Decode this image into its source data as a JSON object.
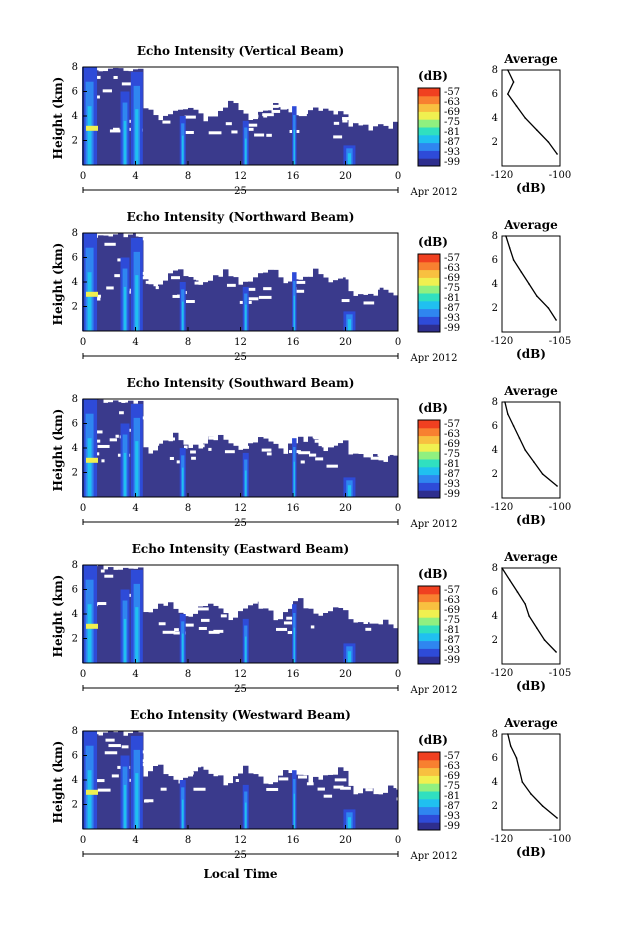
{
  "figure": {
    "date_label": "Apr 2012",
    "xlabel": "Local Time",
    "x_ticks": [
      "0",
      "4",
      "8",
      "12",
      "16",
      "20",
      "0"
    ],
    "day_label": "25",
    "ylabel": "Height (km)",
    "y_ticks": [
      "2",
      "4",
      "6",
      "8"
    ],
    "colorbar_unit": "(dB)",
    "colorbar_ticks": [
      "-57",
      "-63",
      "-69",
      "-75",
      "-81",
      "-87",
      "-93",
      "-99"
    ],
    "colors": {
      "background": "#3a3a8c",
      "colormap": [
        "#2e2e8e",
        "#2e4bd8",
        "#2f86f0",
        "#20c0f0",
        "#30e0c0",
        "#90f080",
        "#f0f050",
        "#f8c040",
        "#f88030",
        "#f04020"
      ]
    }
  },
  "chart_data": [
    {
      "type": "heatmap",
      "title": "Echo Intensity (Vertical Beam)",
      "ylabel": "Height (km)",
      "ylim": [
        0,
        8
      ],
      "xlim_hours": [
        0,
        24
      ],
      "colorbar_range_db": [
        -99,
        -57
      ],
      "profile": {
        "title": "Average",
        "xlabel": "(dB)",
        "x_ticks": [
          "-120",
          "-100"
        ],
        "xlim": [
          -120,
          -100
        ],
        "heights": [
          1,
          2,
          3,
          4,
          5,
          6,
          7,
          8
        ],
        "values": [
          -101,
          -104,
          -108,
          -112,
          -115,
          -118,
          -116,
          -118
        ]
      }
    },
    {
      "type": "heatmap",
      "title": "Echo Intensity (Northward Beam)",
      "ylabel": "Height (km)",
      "ylim": [
        0,
        8
      ],
      "xlim_hours": [
        0,
        24
      ],
      "colorbar_range_db": [
        -99,
        -57
      ],
      "profile": {
        "title": "Average",
        "xlabel": "(dB)",
        "x_ticks": [
          "-120",
          "-105"
        ],
        "xlim": [
          -120,
          -105
        ],
        "heights": [
          1,
          2,
          3,
          4,
          5,
          6,
          7,
          8
        ],
        "values": [
          -106,
          -108,
          -111,
          -113,
          -115,
          -117,
          -118,
          -119
        ]
      }
    },
    {
      "type": "heatmap",
      "title": "Echo Intensity (Southward Beam)",
      "ylabel": "Height (km)",
      "ylim": [
        0,
        8
      ],
      "xlim_hours": [
        0,
        24
      ],
      "colorbar_range_db": [
        -99,
        -57
      ],
      "profile": {
        "title": "Average",
        "xlabel": "(dB)",
        "x_ticks": [
          "-120",
          "-100"
        ],
        "xlim": [
          -120,
          -100
        ],
        "heights": [
          1,
          2,
          3,
          4,
          5,
          6,
          7,
          8
        ],
        "values": [
          -101,
          -106,
          -109,
          -112,
          -114,
          -116,
          -118,
          -119
        ]
      }
    },
    {
      "type": "heatmap",
      "title": "Echo Intensity (Eastward Beam)",
      "ylabel": "Height (km)",
      "ylim": [
        0,
        8
      ],
      "xlim_hours": [
        0,
        24
      ],
      "colorbar_range_db": [
        -99,
        -57
      ],
      "profile": {
        "title": "Average",
        "xlabel": "(dB)",
        "x_ticks": [
          "-120",
          "-105"
        ],
        "xlim": [
          -120,
          -105
        ],
        "heights": [
          1,
          2,
          3,
          4,
          5,
          6,
          7,
          8
        ],
        "values": [
          -106,
          -109,
          -111,
          -113,
          -114,
          -116,
          -118,
          -120
        ]
      }
    },
    {
      "type": "heatmap",
      "title": "Echo Intensity (Westward Beam)",
      "ylabel": "Height (km)",
      "ylim": [
        0,
        8
      ],
      "xlim_hours": [
        0,
        24
      ],
      "colorbar_range_db": [
        -99,
        -57
      ],
      "profile": {
        "title": "Average",
        "xlabel": "(dB)",
        "x_ticks": [
          "-120",
          "-100"
        ],
        "xlim": [
          -120,
          -100
        ],
        "heights": [
          1,
          2,
          3,
          4,
          5,
          6,
          7,
          8
        ],
        "values": [
          -101,
          -106,
          -110,
          -113,
          -114,
          -115,
          -117,
          -118
        ]
      }
    }
  ]
}
